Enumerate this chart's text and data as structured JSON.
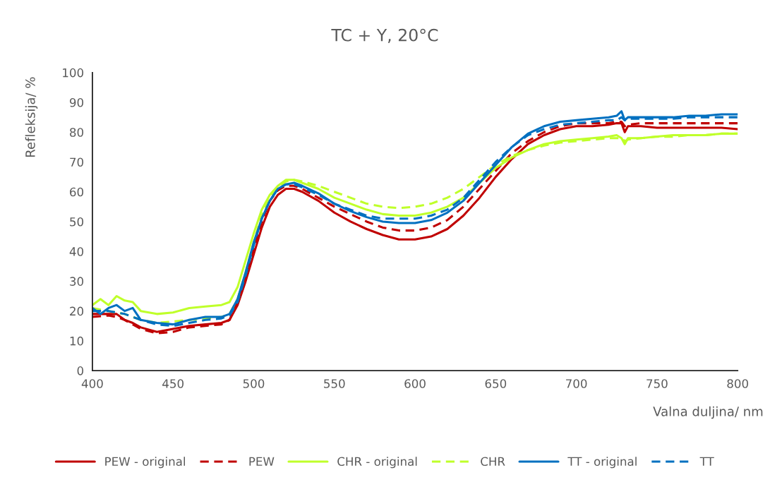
{
  "chart_data": {
    "type": "line",
    "title": "TC + Y, 20°C",
    "xlabel": "Valna duljina/ nm",
    "ylabel": "Refleksija/ %",
    "xlim": [
      400,
      800
    ],
    "xticks": [
      400,
      450,
      500,
      550,
      600,
      650,
      700,
      750,
      800
    ],
    "ylim": [
      0,
      100
    ],
    "yticks": [
      0,
      10,
      20,
      30,
      40,
      50,
      60,
      70,
      80,
      90,
      100
    ],
    "grid": false,
    "legend": "bottom",
    "marker": "none",
    "series": [
      {
        "name": "PEW - original",
        "color": "#c00000",
        "line_style": "solid",
        "x": [
          400,
          410,
          415,
          420,
          425,
          430,
          440,
          450,
          460,
          470,
          480,
          485,
          490,
          495,
          500,
          505,
          510,
          515,
          520,
          525,
          530,
          540,
          550,
          560,
          570,
          580,
          590,
          600,
          610,
          620,
          630,
          640,
          650,
          660,
          670,
          680,
          690,
          700,
          710,
          720,
          725,
          728,
          730,
          732,
          740,
          750,
          760,
          770,
          780,
          790,
          800
        ],
        "values": [
          19,
          19,
          19,
          17,
          16,
          14.5,
          13,
          14,
          15,
          15.5,
          16,
          17,
          22,
          30,
          39,
          48,
          55,
          59,
          61,
          61,
          60,
          57,
          53,
          50,
          47.5,
          45.5,
          44,
          44,
          45,
          47.5,
          52,
          58,
          65,
          71,
          76,
          79,
          81,
          82,
          82,
          82.5,
          83,
          83,
          80,
          82,
          82,
          81.5,
          81.5,
          81.5,
          81.5,
          81.5,
          81
        ]
      },
      {
        "name": "PEW",
        "color": "#c00000",
        "line_style": "dashed",
        "x": [
          400,
          410,
          415,
          420,
          425,
          430,
          440,
          450,
          460,
          470,
          480,
          485,
          490,
          495,
          500,
          505,
          510,
          515,
          520,
          525,
          530,
          540,
          550,
          560,
          570,
          580,
          590,
          600,
          610,
          620,
          630,
          640,
          650,
          660,
          670,
          680,
          690,
          700,
          710,
          720,
          725,
          728,
          730,
          732,
          740,
          750,
          760,
          770,
          780,
          790,
          800
        ],
        "values": [
          18,
          18.5,
          18,
          17,
          15.5,
          14,
          12.5,
          13,
          14.5,
          15,
          15.5,
          17,
          23,
          32,
          41,
          50,
          57,
          60.5,
          62,
          62,
          61,
          58,
          55,
          52.5,
          50,
          48,
          47,
          47,
          48,
          50.5,
          55,
          61,
          67,
          73,
          77,
          80,
          82,
          83,
          83,
          83,
          83.5,
          83.5,
          82,
          82.5,
          83,
          83,
          83,
          83,
          83,
          83,
          83
        ]
      },
      {
        "name": "CHR - original",
        "color": "#bfff2a",
        "line_style": "solid",
        "x": [
          400,
          405,
          410,
          415,
          420,
          425,
          430,
          440,
          450,
          460,
          470,
          480,
          485,
          490,
          495,
          500,
          505,
          510,
          515,
          520,
          525,
          530,
          540,
          550,
          560,
          570,
          580,
          590,
          600,
          610,
          620,
          630,
          640,
          650,
          660,
          670,
          680,
          690,
          700,
          710,
          720,
          725,
          728,
          730,
          732,
          740,
          750,
          760,
          770,
          780,
          790,
          800
        ],
        "values": [
          22,
          24,
          22,
          25,
          23.5,
          23,
          20,
          19,
          19.5,
          21,
          21.5,
          22,
          23,
          28,
          37,
          46,
          54,
          59,
          62,
          64,
          64,
          63,
          61,
          58,
          56,
          54,
          52.5,
          52,
          52,
          53,
          55,
          58,
          63,
          68,
          71.5,
          74,
          76,
          77,
          77.5,
          78,
          78.5,
          79,
          78,
          76,
          78,
          78,
          78.5,
          79,
          79,
          79,
          79.5,
          79.5
        ]
      },
      {
        "name": "CHR",
        "color": "#bfff2a",
        "line_style": "dashed",
        "x": [
          400,
          410,
          420,
          430,
          440,
          450,
          460,
          470,
          480,
          485,
          490,
          495,
          500,
          505,
          510,
          515,
          520,
          525,
          530,
          540,
          550,
          560,
          570,
          580,
          590,
          600,
          610,
          620,
          630,
          640,
          650,
          660,
          670,
          680,
          690,
          700,
          710,
          720,
          725,
          728,
          730,
          732,
          740,
          750,
          760,
          770,
          780,
          790,
          800
        ],
        "values": [
          21,
          20,
          19,
          17,
          16,
          16.5,
          17,
          17.5,
          18,
          19,
          24,
          33,
          43,
          52,
          58,
          61.5,
          63.5,
          64,
          63.5,
          62,
          60,
          58,
          56,
          55,
          54.5,
          55,
          56,
          58,
          61,
          65,
          69,
          72,
          74,
          75.5,
          76.5,
          77,
          77.5,
          78,
          78,
          78,
          77,
          77.5,
          78,
          78.5,
          78.5,
          79,
          79,
          79.5,
          79.5
        ]
      },
      {
        "name": "TT - original",
        "color": "#0070c0",
        "line_style": "solid",
        "x": [
          400,
          405,
          410,
          415,
          420,
          425,
          430,
          440,
          450,
          460,
          470,
          480,
          485,
          490,
          495,
          500,
          505,
          510,
          515,
          520,
          525,
          530,
          540,
          550,
          560,
          570,
          580,
          590,
          600,
          610,
          620,
          630,
          640,
          650,
          660,
          670,
          680,
          690,
          700,
          710,
          720,
          725,
          728,
          730,
          732,
          740,
          750,
          760,
          770,
          780,
          790,
          800
        ],
        "values": [
          21,
          19,
          21,
          22,
          20,
          21,
          17,
          16,
          15.5,
          17,
          18,
          18,
          19,
          24,
          33,
          43,
          51,
          57,
          61,
          62.5,
          63,
          62,
          59.5,
          56,
          53.5,
          51.5,
          50,
          49.5,
          49.5,
          50.5,
          53,
          57,
          63,
          69,
          75,
          79.5,
          82,
          83.5,
          84,
          84.5,
          85,
          85.5,
          87,
          84,
          85,
          85,
          85,
          85,
          85.5,
          85.5,
          86,
          86
        ]
      },
      {
        "name": "TT",
        "color": "#0070c0",
        "line_style": "dashed",
        "x": [
          400,
          410,
          420,
          430,
          440,
          450,
          460,
          470,
          480,
          485,
          490,
          495,
          500,
          505,
          510,
          515,
          520,
          525,
          530,
          540,
          550,
          560,
          570,
          580,
          590,
          600,
          610,
          620,
          630,
          640,
          650,
          660,
          670,
          680,
          690,
          700,
          710,
          720,
          725,
          728,
          730,
          732,
          740,
          750,
          760,
          770,
          780,
          790,
          800
        ],
        "values": [
          20,
          20,
          19,
          17,
          15.5,
          15,
          16,
          17,
          17.5,
          18.5,
          23,
          32,
          42,
          51,
          57,
          61,
          62.5,
          62.5,
          61.5,
          59,
          56,
          54,
          52,
          51,
          51,
          51,
          52,
          54,
          58,
          64,
          70,
          75,
          79,
          81,
          82.5,
          83,
          83.5,
          84,
          84,
          85,
          84,
          84.5,
          84.5,
          84.5,
          84.5,
          85,
          85,
          85,
          85
        ]
      }
    ]
  }
}
